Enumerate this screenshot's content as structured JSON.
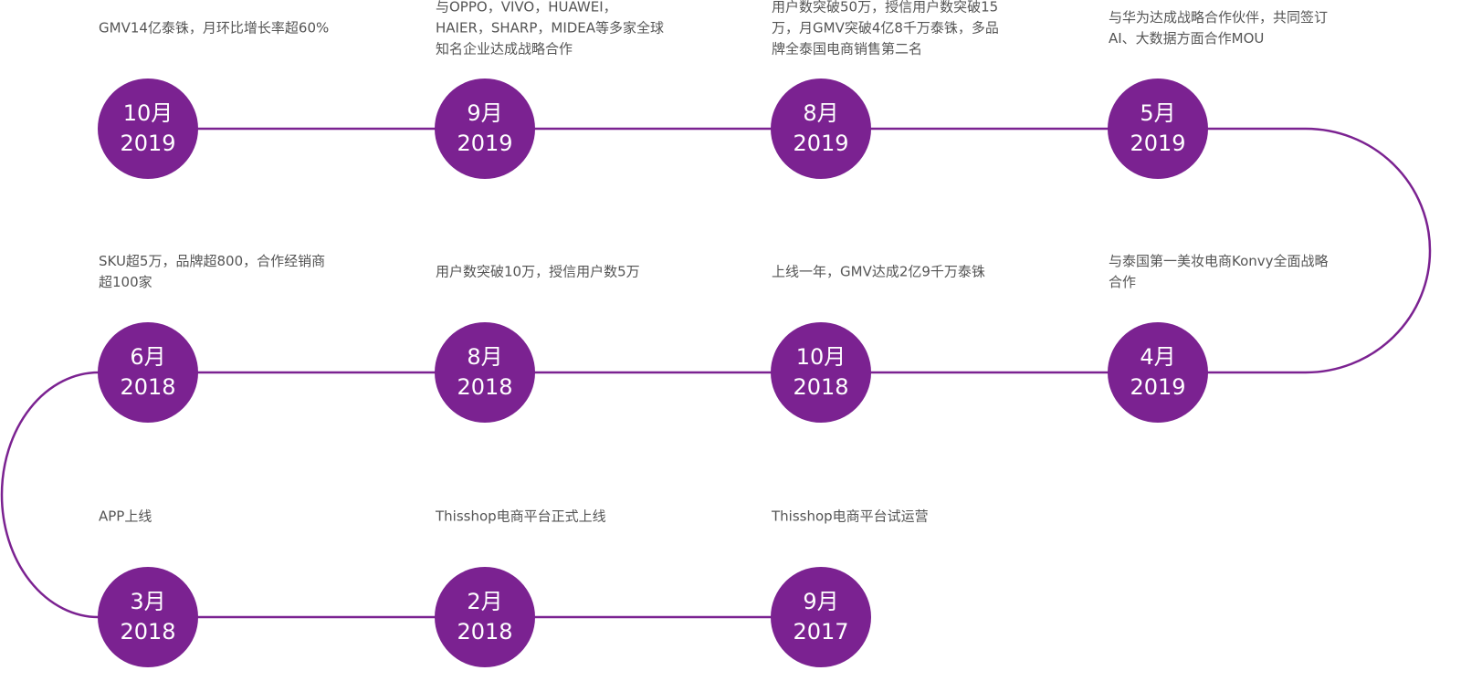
{
  "nodes": [
    {
      "month": "10月",
      "year": "2019",
      "text": [
        "GMV14亿泰铢，月环比增长率超60%"
      ]
    },
    {
      "month": "9月",
      "year": "2019",
      "text": [
        "与OPPO，VIVO，HUAWEI，",
        "HAIER，SHARP，MIDEA等多家全球",
        "知名企业达成战略合作"
      ]
    },
    {
      "month": "8月",
      "year": "2019",
      "text": [
        "用户数突破50万，授信用户数突破15",
        "万，月GMV突破4亿8千万泰铢，多品",
        "牌全泰国电商销售第二名"
      ]
    },
    {
      "month": "5月",
      "year": "2019",
      "text": [
        "与华为达成战略合作伙伴，共同签订",
        "AI、大数据方面合作MOU"
      ]
    },
    {
      "month": "4月",
      "year": "2019",
      "text": [
        "与泰国第一美妆电商Konvy全面战略",
        "合作"
      ]
    },
    {
      "month": "10月",
      "year": "2018",
      "text": [
        "上线一年，GMV达成2亿9千万泰铢"
      ]
    },
    {
      "month": "8月",
      "year": "2018",
      "text": [
        "用户数突破10万，授信用户数5万"
      ]
    },
    {
      "month": "6月",
      "year": "2018",
      "text": [
        "SKU超5万，品牌超800，合作经销商",
        "超100家"
      ]
    },
    {
      "month": "3月",
      "year": "2018",
      "text": [
        "APP上线"
      ]
    },
    {
      "month": "2月",
      "year": "2018",
      "text": [
        "Thisshop电商平台正式上线"
      ]
    },
    {
      "month": "9月",
      "year": "2017",
      "text": [
        "Thisshop电商平台试运营"
      ]
    }
  ]
}
